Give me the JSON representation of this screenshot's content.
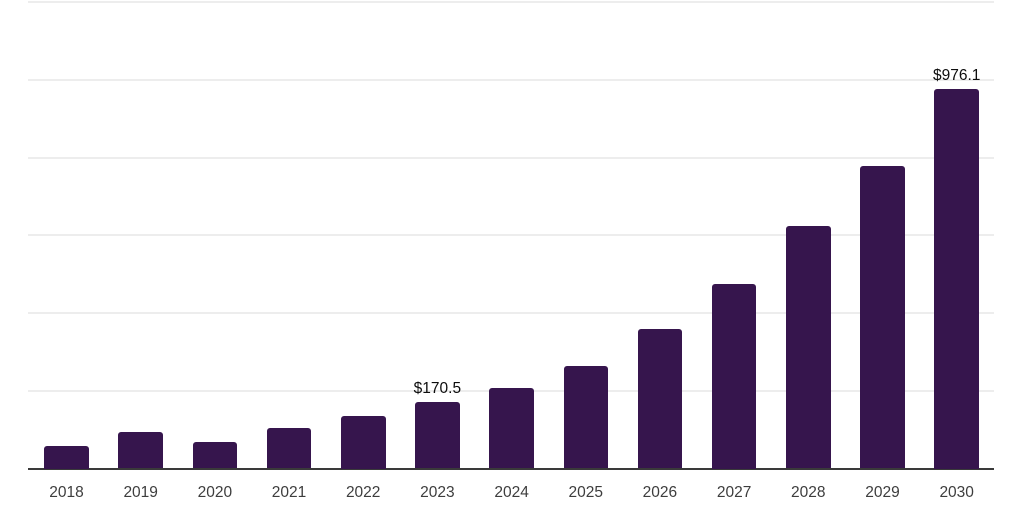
{
  "chart_data": {
    "type": "bar",
    "title": "",
    "xlabel": "",
    "ylabel": "",
    "categories": [
      "2018",
      "2019",
      "2020",
      "2021",
      "2022",
      "2023",
      "2024",
      "2025",
      "2026",
      "2027",
      "2028",
      "2029",
      "2030"
    ],
    "values": [
      58,
      95,
      69,
      105,
      135,
      170.5,
      206,
      264,
      359,
      476,
      624,
      778,
      976.1
    ],
    "data_labels": [
      {
        "category": "2023",
        "text": "$170.5"
      },
      {
        "category": "2030",
        "text": "$976.1"
      }
    ],
    "ylim": [
      0,
      1200
    ],
    "gridline_step": 200,
    "grid": true,
    "legend": false,
    "y_axis_tick_labels_visible": false
  },
  "colors": {
    "background": "#ffffff",
    "bar": "#36154d",
    "gridline": "#ededed",
    "axis": "#3a3a3a",
    "tick_label": "#3d3d3d",
    "data_label": "#0d0d0d"
  }
}
